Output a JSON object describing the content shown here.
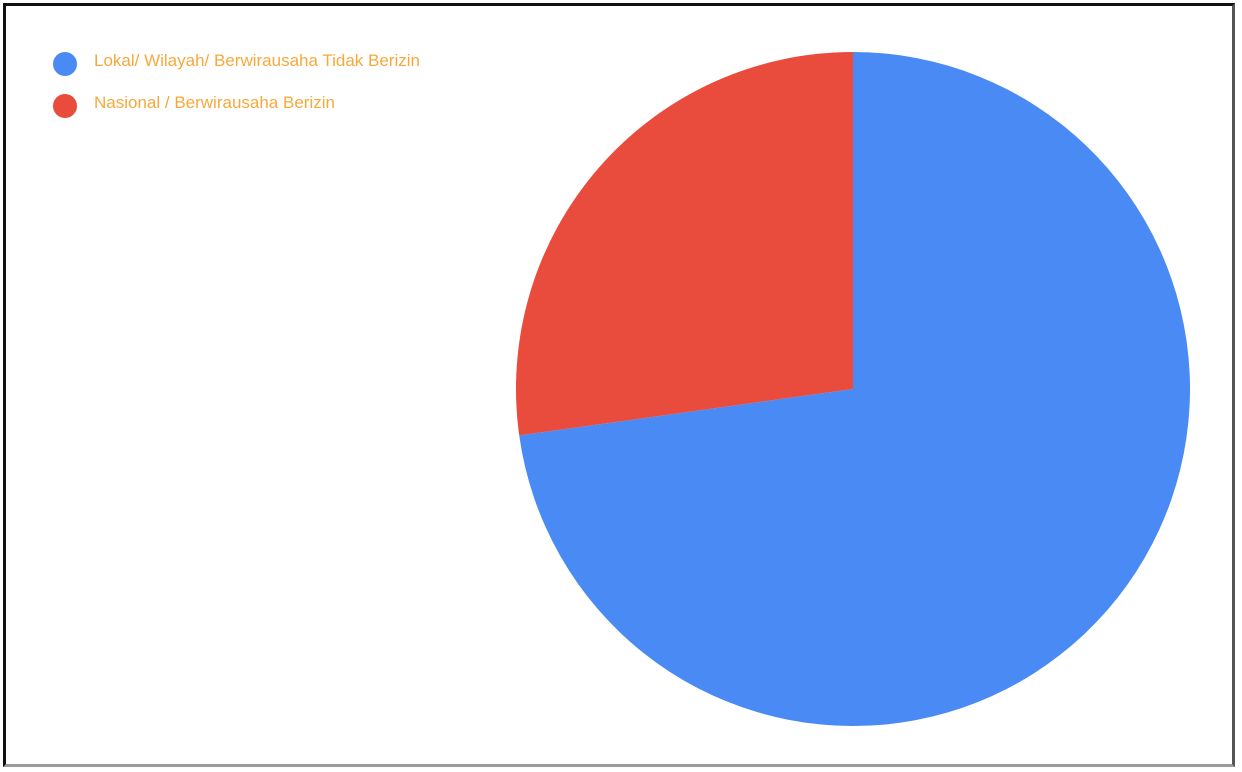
{
  "chart_data": {
    "type": "pie",
    "title": "",
    "legend_position": "top-left",
    "slices": [
      {
        "label": "Lokal/ Wilayah/ Berwirausaha Tidak Berizin",
        "value": 72.8,
        "color": "#4a8af4"
      },
      {
        "label": "Nasional / Berwirausaha Berizin",
        "value": 27.2,
        "color": "#e94b3c"
      }
    ]
  },
  "legend": {
    "items": [
      {
        "label": "Lokal/ Wilayah/ Berwirausaha Tidak Berizin",
        "color": "#4a8af4"
      },
      {
        "label": "Nasional / Berwirausaha Berizin",
        "color": "#e94b3c"
      }
    ],
    "text_color": "#f6a93a"
  }
}
